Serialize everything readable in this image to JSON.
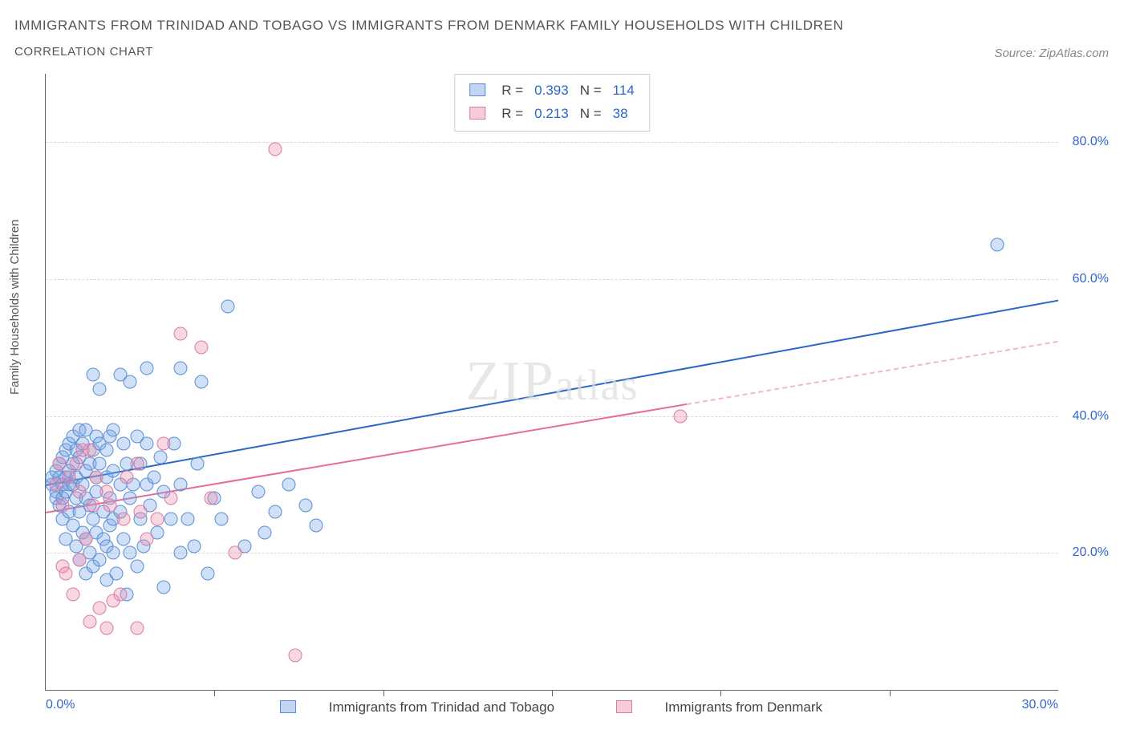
{
  "title": "IMMIGRANTS FROM TRINIDAD AND TOBAGO VS IMMIGRANTS FROM DENMARK FAMILY HOUSEHOLDS WITH CHILDREN",
  "subtitle": "CORRELATION CHART",
  "source": "Source: ZipAtlas.com",
  "ylabel": "Family Households with Children",
  "watermark_bold": "ZIP",
  "watermark_thin": "atlas",
  "chart": {
    "type": "scatter",
    "background_color": "#ffffff",
    "grid_color": "#d8d8d8",
    "axis_color": "#666666",
    "tick_color": "#3366cc",
    "xlim": [
      0,
      30
    ],
    "ylim": [
      0,
      90
    ],
    "x_ticks": [
      0,
      5,
      10,
      15,
      20,
      25,
      30
    ],
    "x_tick_labels": [
      "0.0%",
      "",
      "",
      "",
      "",
      "",
      "30.0%"
    ],
    "y_right_ticks": [
      20,
      40,
      60,
      80
    ],
    "y_right_labels": [
      "20.0%",
      "40.0%",
      "60.0%",
      "80.0%"
    ],
    "series": [
      {
        "name": "Immigrants from Trinidad and Tobago",
        "class": "series-a",
        "fill": "rgba(120,165,230,0.35)",
        "stroke": "#5a8dd6",
        "trend_color": "#2a66c8",
        "r_label": "R =",
        "r_value": "0.393",
        "n_label": "N =",
        "n_value": "114",
        "trend": {
          "x1": 0,
          "y1": 30,
          "x2": 30,
          "y2": 57,
          "dash_after_x": null
        },
        "points": [
          [
            0.2,
            30
          ],
          [
            0.2,
            31
          ],
          [
            0.3,
            29
          ],
          [
            0.3,
            32
          ],
          [
            0.3,
            28
          ],
          [
            0.4,
            31
          ],
          [
            0.4,
            33
          ],
          [
            0.4,
            27
          ],
          [
            0.5,
            30
          ],
          [
            0.5,
            34
          ],
          [
            0.5,
            28
          ],
          [
            0.5,
            25
          ],
          [
            0.6,
            31
          ],
          [
            0.6,
            35
          ],
          [
            0.6,
            22
          ],
          [
            0.6,
            29
          ],
          [
            0.7,
            32
          ],
          [
            0.7,
            36
          ],
          [
            0.7,
            26
          ],
          [
            0.7,
            30
          ],
          [
            0.8,
            33
          ],
          [
            0.8,
            30
          ],
          [
            0.8,
            24
          ],
          [
            0.8,
            37
          ],
          [
            0.9,
            28
          ],
          [
            0.9,
            31
          ],
          [
            0.9,
            35
          ],
          [
            0.9,
            21
          ],
          [
            1.0,
            34
          ],
          [
            1.0,
            26
          ],
          [
            1.0,
            19
          ],
          [
            1.0,
            38
          ],
          [
            1.1,
            23
          ],
          [
            1.1,
            30
          ],
          [
            1.1,
            36
          ],
          [
            1.2,
            17
          ],
          [
            1.2,
            32
          ],
          [
            1.2,
            38
          ],
          [
            1.2,
            22
          ],
          [
            1.2,
            28
          ],
          [
            1.3,
            20
          ],
          [
            1.3,
            33
          ],
          [
            1.3,
            27
          ],
          [
            1.4,
            18
          ],
          [
            1.4,
            35
          ],
          [
            1.4,
            25
          ],
          [
            1.4,
            46
          ],
          [
            1.5,
            29
          ],
          [
            1.5,
            37
          ],
          [
            1.5,
            31
          ],
          [
            1.5,
            23
          ],
          [
            1.6,
            19
          ],
          [
            1.6,
            33
          ],
          [
            1.6,
            36
          ],
          [
            1.6,
            44
          ],
          [
            1.7,
            26
          ],
          [
            1.7,
            22
          ],
          [
            1.8,
            21
          ],
          [
            1.8,
            35
          ],
          [
            1.8,
            31
          ],
          [
            1.8,
            16
          ],
          [
            1.9,
            28
          ],
          [
            1.9,
            24
          ],
          [
            1.9,
            37
          ],
          [
            2.0,
            20
          ],
          [
            2.0,
            32
          ],
          [
            2.0,
            38
          ],
          [
            2.0,
            25
          ],
          [
            2.1,
            17
          ],
          [
            2.2,
            30
          ],
          [
            2.2,
            46
          ],
          [
            2.2,
            26
          ],
          [
            2.3,
            22
          ],
          [
            2.3,
            36
          ],
          [
            2.4,
            33
          ],
          [
            2.4,
            14
          ],
          [
            2.5,
            28
          ],
          [
            2.5,
            20
          ],
          [
            2.5,
            45
          ],
          [
            2.6,
            30
          ],
          [
            2.7,
            37
          ],
          [
            2.7,
            18
          ],
          [
            2.8,
            25
          ],
          [
            2.8,
            33
          ],
          [
            2.9,
            21
          ],
          [
            3.0,
            36
          ],
          [
            3.0,
            47
          ],
          [
            3.0,
            30
          ],
          [
            3.1,
            27
          ],
          [
            3.2,
            31
          ],
          [
            3.3,
            23
          ],
          [
            3.4,
            34
          ],
          [
            3.5,
            29
          ],
          [
            3.5,
            15
          ],
          [
            3.7,
            25
          ],
          [
            3.8,
            36
          ],
          [
            4.0,
            30
          ],
          [
            4.0,
            20
          ],
          [
            4.0,
            47
          ],
          [
            4.2,
            25
          ],
          [
            4.4,
            21
          ],
          [
            4.5,
            33
          ],
          [
            4.6,
            45
          ],
          [
            4.8,
            17
          ],
          [
            5.0,
            28
          ],
          [
            5.2,
            25
          ],
          [
            5.4,
            56
          ],
          [
            5.9,
            21
          ],
          [
            6.3,
            29
          ],
          [
            6.5,
            23
          ],
          [
            6.8,
            26
          ],
          [
            7.2,
            30
          ],
          [
            7.7,
            27
          ],
          [
            8.0,
            24
          ],
          [
            28.2,
            65
          ]
        ]
      },
      {
        "name": "Immigrants from Denmark",
        "class": "series-b",
        "fill": "rgba(235,140,175,0.35)",
        "stroke": "#d97ba4",
        "trend_color": "#e86b9a",
        "r_label": "R =",
        "r_value": "0.213",
        "n_label": "N =",
        "n_value": "38",
        "trend": {
          "x1": 0,
          "y1": 26,
          "x2": 30,
          "y2": 51,
          "dash_after_x": 19
        },
        "points": [
          [
            0.3,
            30
          ],
          [
            0.4,
            33
          ],
          [
            0.5,
            27
          ],
          [
            0.5,
            18
          ],
          [
            0.6,
            17
          ],
          [
            0.7,
            31
          ],
          [
            0.8,
            14
          ],
          [
            0.9,
            33
          ],
          [
            1.0,
            19
          ],
          [
            1.0,
            29
          ],
          [
            1.1,
            35
          ],
          [
            1.2,
            22
          ],
          [
            1.3,
            10
          ],
          [
            1.3,
            35
          ],
          [
            1.4,
            27
          ],
          [
            1.5,
            31
          ],
          [
            1.6,
            12
          ],
          [
            1.8,
            9
          ],
          [
            1.8,
            29
          ],
          [
            1.9,
            27
          ],
          [
            2.0,
            13
          ],
          [
            2.2,
            14
          ],
          [
            2.3,
            25
          ],
          [
            2.4,
            31
          ],
          [
            2.7,
            9
          ],
          [
            2.7,
            33
          ],
          [
            2.8,
            26
          ],
          [
            3.0,
            22
          ],
          [
            3.3,
            25
          ],
          [
            3.5,
            36
          ],
          [
            3.7,
            28
          ],
          [
            4.0,
            52
          ],
          [
            4.6,
            50
          ],
          [
            4.9,
            28
          ],
          [
            5.6,
            20
          ],
          [
            6.8,
            79
          ],
          [
            7.4,
            5
          ],
          [
            18.8,
            40
          ]
        ]
      }
    ]
  }
}
